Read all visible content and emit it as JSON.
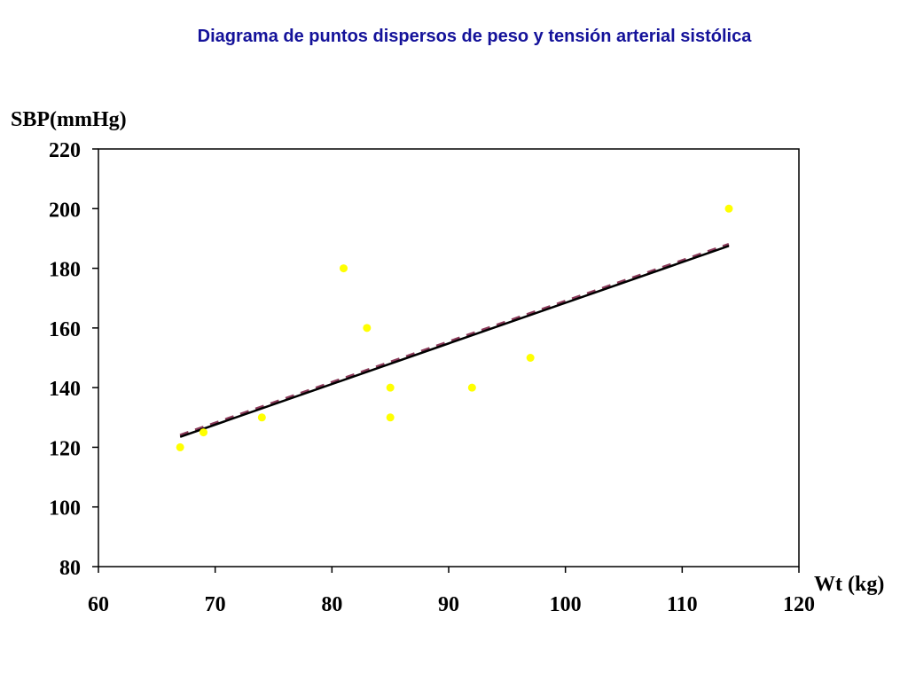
{
  "chart_data": {
    "type": "scatter",
    "title": "Diagrama de puntos dispersos de peso y tensión arterial sistólica",
    "xlabel": "Wt (kg)",
    "ylabel": "SBP(mmHg)",
    "xlim": [
      60,
      120
    ],
    "ylim": [
      80,
      220
    ],
    "x_ticks": [
      60,
      70,
      80,
      90,
      100,
      110,
      120
    ],
    "y_ticks": [
      80,
      100,
      120,
      140,
      160,
      180,
      200,
      220
    ],
    "grid": false,
    "legend": "none",
    "point_color": "#ffff00",
    "points": [
      {
        "x": 67,
        "y": 120
      },
      {
        "x": 69,
        "y": 125
      },
      {
        "x": 74,
        "y": 130
      },
      {
        "x": 81,
        "y": 180
      },
      {
        "x": 83,
        "y": 160
      },
      {
        "x": 85,
        "y": 140
      },
      {
        "x": 85,
        "y": 130
      },
      {
        "x": 92,
        "y": 140
      },
      {
        "x": 97,
        "y": 150
      },
      {
        "x": 114,
        "y": 200
      }
    ],
    "trend_lines": [
      {
        "style": "solid",
        "color": "#000000",
        "x": [
          67,
          114
        ],
        "y": [
          123.5,
          187.5
        ]
      },
      {
        "style": "dashed",
        "color": "#8b3a5a",
        "x": [
          67,
          114
        ],
        "y": [
          124,
          188
        ]
      }
    ]
  }
}
